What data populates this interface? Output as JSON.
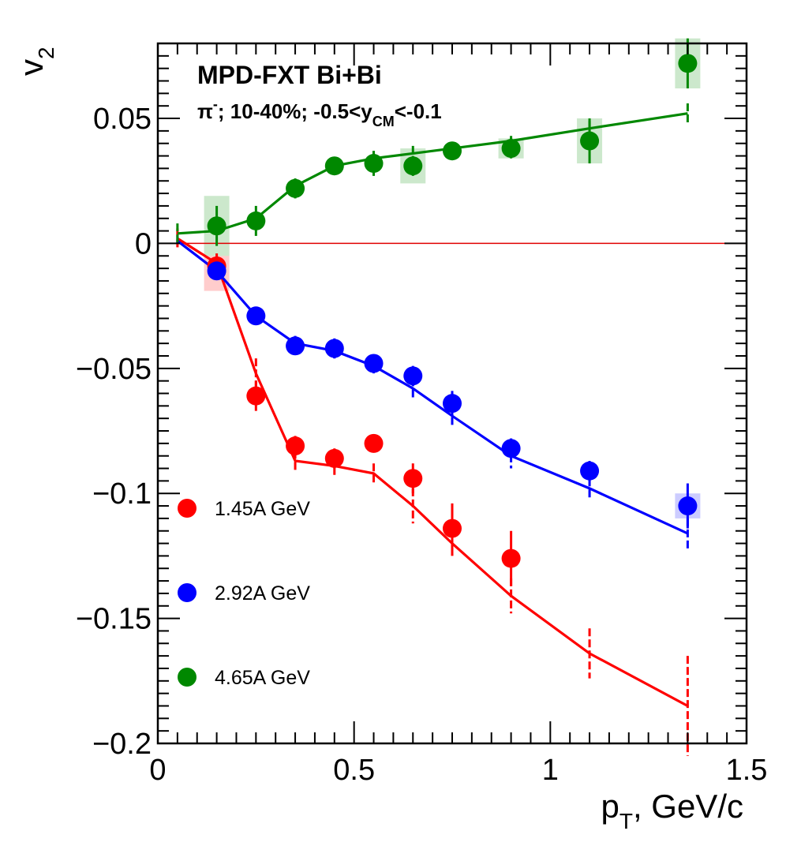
{
  "chart_data": {
    "type": "scatter",
    "title": "",
    "xlabel": {
      "main": "p",
      "sub": "T",
      "rest": ", GeV/c"
    },
    "ylabel": {
      "main": "v",
      "sub": "2"
    },
    "xlim": [
      0,
      1.5
    ],
    "ylim": [
      -0.2,
      0.08
    ],
    "x_ticks": [
      {
        "value": 0,
        "label": "0"
      },
      {
        "value": 0.5,
        "label": "0.5"
      },
      {
        "value": 1,
        "label": "1"
      },
      {
        "value": 1.5,
        "label": "1.5"
      }
    ],
    "y_ticks": [
      {
        "value": 0.05,
        "label": "0.05"
      },
      {
        "value": 0,
        "label": "0"
      },
      {
        "value": -0.05,
        "label": "−0.05"
      },
      {
        "value": -0.1,
        "label": "−0.1"
      },
      {
        "value": -0.15,
        "label": "−0.15"
      },
      {
        "value": -0.2,
        "label": "−0.2"
      }
    ],
    "reference_line": {
      "y": 0,
      "color": "#e00000"
    },
    "annotations": {
      "experiment": "MPD-FXT Bi+Bi",
      "cuts": {
        "particle": "π",
        "charge": "-",
        "text": "; 10-40%; -0.5<y",
        "rapidity_sub": "CM",
        "tail": "<-0.1"
      }
    },
    "series": [
      {
        "name": "1.45A GeV",
        "color": "#ff0000",
        "band_color": "#ffcccc",
        "points": [
          {
            "x": 0.15,
            "y": -0.009,
            "err": 0.004,
            "syst": 0.01
          },
          {
            "x": 0.25,
            "y": -0.061,
            "err": 0.006
          },
          {
            "x": 0.35,
            "y": -0.081,
            "err": 0.004
          },
          {
            "x": 0.45,
            "y": -0.086,
            "err": 0.004
          },
          {
            "x": 0.55,
            "y": -0.08,
            "err": 0.003
          },
          {
            "x": 0.65,
            "y": -0.094,
            "err": 0.006
          },
          {
            "x": 0.75,
            "y": -0.114,
            "err": 0.01
          },
          {
            "x": 0.9,
            "y": -0.126,
            "err": 0.011
          }
        ],
        "model": [
          {
            "x": 0.05,
            "y": 0.002,
            "err": 0.004
          },
          {
            "x": 0.15,
            "y": -0.008,
            "err": 0.004
          },
          {
            "x": 0.25,
            "y": -0.052,
            "err": 0.006
          },
          {
            "x": 0.35,
            "y": -0.087,
            "err": 0.004
          },
          {
            "x": 0.45,
            "y": -0.089,
            "err": 0.004
          },
          {
            "x": 0.55,
            "y": -0.092,
            "err": 0.004
          },
          {
            "x": 0.65,
            "y": -0.105,
            "err": 0.007
          },
          {
            "x": 0.75,
            "y": -0.12,
            "err": 0.005
          },
          {
            "x": 0.9,
            "y": -0.141,
            "err": 0.007
          },
          {
            "x": 1.1,
            "y": -0.164,
            "err": 0.01
          },
          {
            "x": 1.35,
            "y": -0.185,
            "err": 0.02
          }
        ]
      },
      {
        "name": "2.92A GeV",
        "color": "#0000ff",
        "band_color": "#ccccff",
        "points": [
          {
            "x": 0.15,
            "y": -0.011,
            "err": 0.003
          },
          {
            "x": 0.25,
            "y": -0.029,
            "err": 0.003
          },
          {
            "x": 0.35,
            "y": -0.041,
            "err": 0.003
          },
          {
            "x": 0.45,
            "y": -0.042,
            "err": 0.004
          },
          {
            "x": 0.55,
            "y": -0.048,
            "err": 0.003
          },
          {
            "x": 0.65,
            "y": -0.053,
            "err": 0.004
          },
          {
            "x": 0.75,
            "y": -0.064,
            "err": 0.005
          },
          {
            "x": 0.9,
            "y": -0.082,
            "err": 0.004
          },
          {
            "x": 1.1,
            "y": -0.091,
            "err": 0.004
          },
          {
            "x": 1.35,
            "y": -0.105,
            "err": 0.009,
            "syst": 0.005
          }
        ],
        "model": [
          {
            "x": 0.05,
            "y": 0.001,
            "err": 0.002
          },
          {
            "x": 0.15,
            "y": -0.011,
            "err": 0.003
          },
          {
            "x": 0.25,
            "y": -0.029,
            "err": 0.003
          },
          {
            "x": 0.35,
            "y": -0.04,
            "err": 0.003
          },
          {
            "x": 0.45,
            "y": -0.043,
            "err": 0.003
          },
          {
            "x": 0.55,
            "y": -0.049,
            "err": 0.003
          },
          {
            "x": 0.65,
            "y": -0.058,
            "err": 0.004
          },
          {
            "x": 0.75,
            "y": -0.069,
            "err": 0.004
          },
          {
            "x": 0.9,
            "y": -0.085,
            "err": 0.005
          },
          {
            "x": 1.1,
            "y": -0.098,
            "err": 0.004
          },
          {
            "x": 1.35,
            "y": -0.116,
            "err": 0.006
          }
        ]
      },
      {
        "name": "4.65A GeV",
        "color": "#008800",
        "band_color": "#cce8cc",
        "points": [
          {
            "x": 0.15,
            "y": 0.007,
            "err": 0.008,
            "syst": 0.012
          },
          {
            "x": 0.25,
            "y": 0.009,
            "err": 0.006
          },
          {
            "x": 0.35,
            "y": 0.022,
            "err": 0.004
          },
          {
            "x": 0.45,
            "y": 0.031,
            "err": 0.003
          },
          {
            "x": 0.55,
            "y": 0.032,
            "err": 0.005
          },
          {
            "x": 0.65,
            "y": 0.031,
            "err": 0.004,
            "syst": 0.007
          },
          {
            "x": 0.75,
            "y": 0.037,
            "err": 0.003
          },
          {
            "x": 0.9,
            "y": 0.038,
            "err": 0.004,
            "syst": 0.004
          },
          {
            "x": 1.1,
            "y": 0.041,
            "err": 0.009,
            "syst": 0.009
          },
          {
            "x": 1.35,
            "y": 0.072,
            "err": 0.01,
            "syst": 0.01
          }
        ],
        "model": [
          {
            "x": 0.05,
            "y": 0.004,
            "err": 0.004
          },
          {
            "x": 0.15,
            "y": 0.005,
            "err": 0.002
          },
          {
            "x": 0.25,
            "y": 0.01,
            "err": 0.002
          },
          {
            "x": 0.35,
            "y": 0.023,
            "err": 0.002
          },
          {
            "x": 0.45,
            "y": 0.031,
            "err": 0.002
          },
          {
            "x": 0.55,
            "y": 0.034,
            "err": 0.003
          },
          {
            "x": 0.65,
            "y": 0.036,
            "err": 0.003
          },
          {
            "x": 0.75,
            "y": 0.038,
            "err": 0.002
          },
          {
            "x": 0.9,
            "y": 0.041,
            "err": 0.002
          },
          {
            "x": 1.1,
            "y": 0.046,
            "err": 0.003
          },
          {
            "x": 1.35,
            "y": 0.052,
            "err": 0.004
          }
        ]
      }
    ]
  }
}
